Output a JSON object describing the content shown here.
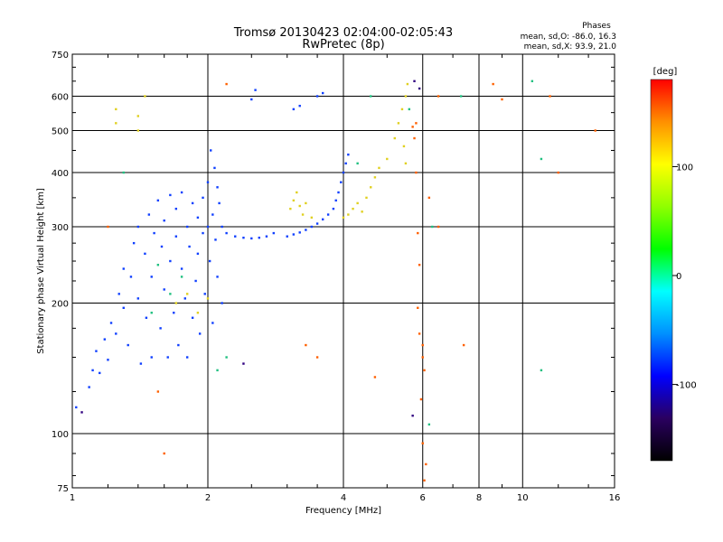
{
  "chart_data": {
    "type": "scatter",
    "title": "Tromsø 20130423 02:04:00-02:05:43",
    "subtitle": "RwPretec (8p)",
    "xlabel": "Frequency [MHz]",
    "ylabel": "Stationary phase Virtual Height [km]",
    "xscale": "log",
    "yscale": "log",
    "xlim": [
      1,
      16
    ],
    "ylim": [
      75,
      750
    ],
    "grid": true,
    "x_ticks": [
      1,
      2,
      4,
      6,
      8,
      10,
      16
    ],
    "x_tick_labels": [
      "1",
      "2",
      "4",
      "6",
      "8",
      "10",
      "16"
    ],
    "y_ticks": [
      75,
      100,
      200,
      300,
      400,
      500,
      600,
      750
    ],
    "y_tick_labels": [
      "75",
      "100",
      "200",
      "300",
      "400",
      "500",
      "600",
      "750"
    ],
    "stats": {
      "header": "Phases",
      "line_o": "mean, sd,O: -86.0, 16.3",
      "line_x": "mean, sd,X:  93.9, 21.0"
    },
    "colorbar": {
      "label": "[deg]",
      "range": [
        -170,
        180
      ],
      "ticks": [
        100,
        0,
        -100
      ],
      "tick_labels": [
        "100",
        "0",
        "-100"
      ],
      "colors": [
        "#000000",
        "#2a0060",
        "#0000ff",
        "#0090ff",
        "#00ffff",
        "#00ff00",
        "#90ff00",
        "#ffff00",
        "#ff9000",
        "#ff0000"
      ]
    },
    "series": [
      {
        "trace": "O-mode E/F1 lower cluster (blue)",
        "phase_deg": -100,
        "color": "#1040ff",
        "points": [
          [
            1.02,
            115
          ],
          [
            1.09,
            128
          ],
          [
            1.11,
            140
          ],
          [
            1.13,
            155
          ],
          [
            1.15,
            138
          ],
          [
            1.18,
            165
          ],
          [
            1.2,
            148
          ],
          [
            1.22,
            180
          ],
          [
            1.25,
            170
          ],
          [
            1.27,
            210
          ],
          [
            1.3,
            195
          ],
          [
            1.3,
            240
          ],
          [
            1.33,
            160
          ],
          [
            1.35,
            230
          ],
          [
            1.37,
            275
          ],
          [
            1.4,
            205
          ],
          [
            1.4,
            300
          ],
          [
            1.42,
            145
          ],
          [
            1.45,
            260
          ],
          [
            1.46,
            185
          ],
          [
            1.48,
            320
          ],
          [
            1.5,
            150
          ],
          [
            1.5,
            230
          ],
          [
            1.52,
            290
          ],
          [
            1.55,
            345
          ],
          [
            1.57,
            175
          ],
          [
            1.58,
            270
          ],
          [
            1.6,
            215
          ],
          [
            1.6,
            310
          ],
          [
            1.63,
            150
          ],
          [
            1.65,
            355
          ],
          [
            1.65,
            250
          ],
          [
            1.68,
            190
          ],
          [
            1.7,
            330
          ],
          [
            1.7,
            285
          ],
          [
            1.72,
            160
          ],
          [
            1.75,
            240
          ],
          [
            1.75,
            360
          ],
          [
            1.78,
            205
          ],
          [
            1.8,
            300
          ],
          [
            1.8,
            150
          ],
          [
            1.82,
            270
          ],
          [
            1.85,
            340
          ],
          [
            1.85,
            185
          ],
          [
            1.88,
            225
          ],
          [
            1.9,
            315
          ],
          [
            1.9,
            260
          ],
          [
            1.92,
            170
          ],
          [
            1.95,
            350
          ],
          [
            1.95,
            290
          ],
          [
            1.97,
            210
          ],
          [
            2.0,
            380
          ],
          [
            2.0,
            300
          ],
          [
            2.02,
            250
          ],
          [
            2.03,
            450
          ],
          [
            2.05,
            320
          ],
          [
            2.05,
            180
          ],
          [
            2.07,
            410
          ],
          [
            2.08,
            280
          ],
          [
            2.1,
            370
          ],
          [
            2.1,
            230
          ],
          [
            2.12,
            340
          ],
          [
            2.15,
            300
          ],
          [
            2.15,
            200
          ]
        ]
      },
      {
        "trace": "O-mode F2 trace (blue)",
        "phase_deg": -100,
        "color": "#1040ff",
        "points": [
          [
            2.2,
            290
          ],
          [
            2.3,
            285
          ],
          [
            2.4,
            283
          ],
          [
            2.5,
            282
          ],
          [
            2.6,
            283
          ],
          [
            2.7,
            285
          ],
          [
            2.8,
            290
          ],
          [
            3.0,
            285
          ],
          [
            3.1,
            288
          ],
          [
            3.2,
            291
          ],
          [
            3.3,
            295
          ],
          [
            3.4,
            300
          ],
          [
            3.5,
            305
          ],
          [
            3.6,
            312
          ],
          [
            3.7,
            320
          ],
          [
            3.8,
            330
          ],
          [
            3.85,
            345
          ],
          [
            3.9,
            360
          ],
          [
            3.95,
            380
          ],
          [
            4.0,
            400
          ],
          [
            4.05,
            420
          ],
          [
            4.1,
            440
          ],
          [
            2.5,
            590
          ],
          [
            2.55,
            620
          ],
          [
            3.1,
            560
          ],
          [
            3.2,
            570
          ],
          [
            3.5,
            600
          ],
          [
            3.6,
            610
          ]
        ]
      },
      {
        "trace": "X-mode trace (yellow/orange)",
        "phase_deg": 100,
        "color": "#e0d020",
        "points": [
          [
            1.25,
            520
          ],
          [
            1.25,
            560
          ],
          [
            1.4,
            500
          ],
          [
            1.4,
            540
          ],
          [
            1.45,
            600
          ],
          [
            1.7,
            200
          ],
          [
            1.8,
            210
          ],
          [
            1.9,
            190
          ],
          [
            2.0,
            205
          ],
          [
            3.05,
            330
          ],
          [
            3.1,
            345
          ],
          [
            3.15,
            360
          ],
          [
            3.2,
            335
          ],
          [
            3.25,
            320
          ],
          [
            3.3,
            340
          ],
          [
            3.4,
            315
          ],
          [
            4.0,
            315
          ],
          [
            4.1,
            320
          ],
          [
            4.2,
            330
          ],
          [
            4.3,
            340
          ],
          [
            4.4,
            325
          ],
          [
            4.5,
            350
          ],
          [
            4.6,
            370
          ],
          [
            4.7,
            390
          ],
          [
            4.8,
            410
          ],
          [
            5.0,
            430
          ],
          [
            5.2,
            480
          ],
          [
            5.3,
            520
          ],
          [
            5.4,
            560
          ],
          [
            5.5,
            600
          ],
          [
            5.55,
            640
          ],
          [
            5.45,
            460
          ],
          [
            5.5,
            420
          ]
        ]
      },
      {
        "trace": "Scattered orange/red points",
        "phase_deg": 150,
        "color": "#ff6000",
        "points": [
          [
            5.7,
            510
          ],
          [
            5.75,
            480
          ],
          [
            5.8,
            520
          ],
          [
            5.8,
            400
          ],
          [
            5.85,
            290
          ],
          [
            5.9,
            245
          ],
          [
            5.85,
            195
          ],
          [
            5.9,
            170
          ],
          [
            6.0,
            160
          ],
          [
            6.0,
            150
          ],
          [
            6.05,
            140
          ],
          [
            5.95,
            120
          ],
          [
            6.0,
            95
          ],
          [
            6.1,
            85
          ],
          [
            6.05,
            78
          ],
          [
            6.2,
            350
          ],
          [
            6.5,
            300
          ],
          [
            7.4,
            160
          ],
          [
            3.3,
            160
          ],
          [
            3.5,
            150
          ],
          [
            4.7,
            135
          ],
          [
            1.55,
            125
          ],
          [
            1.6,
            90
          ],
          [
            1.2,
            300
          ],
          [
            2.2,
            640
          ],
          [
            6.5,
            600
          ],
          [
            8.6,
            640
          ],
          [
            9.0,
            590
          ],
          [
            11.5,
            600
          ],
          [
            12.0,
            400
          ],
          [
            14.5,
            500
          ]
        ]
      },
      {
        "trace": "Sparse cyan/green points",
        "phase_deg": 20,
        "color": "#20c080",
        "points": [
          [
            1.3,
            400
          ],
          [
            1.5,
            190
          ],
          [
            1.55,
            245
          ],
          [
            1.65,
            210
          ],
          [
            1.75,
            230
          ],
          [
            2.2,
            150
          ],
          [
            2.1,
            140
          ],
          [
            4.3,
            420
          ],
          [
            4.6,
            600
          ],
          [
            5.6,
            560
          ],
          [
            6.3,
            300
          ],
          [
            7.3,
            600
          ],
          [
            10.5,
            650
          ],
          [
            11.0,
            430
          ],
          [
            11.0,
            140
          ],
          [
            6.2,
            105
          ]
        ]
      },
      {
        "trace": "Dark purple points",
        "phase_deg": -140,
        "color": "#300080",
        "points": [
          [
            5.7,
            110
          ],
          [
            5.75,
            650
          ],
          [
            5.9,
            625
          ],
          [
            2.4,
            145
          ],
          [
            1.05,
            112
          ]
        ]
      }
    ]
  }
}
